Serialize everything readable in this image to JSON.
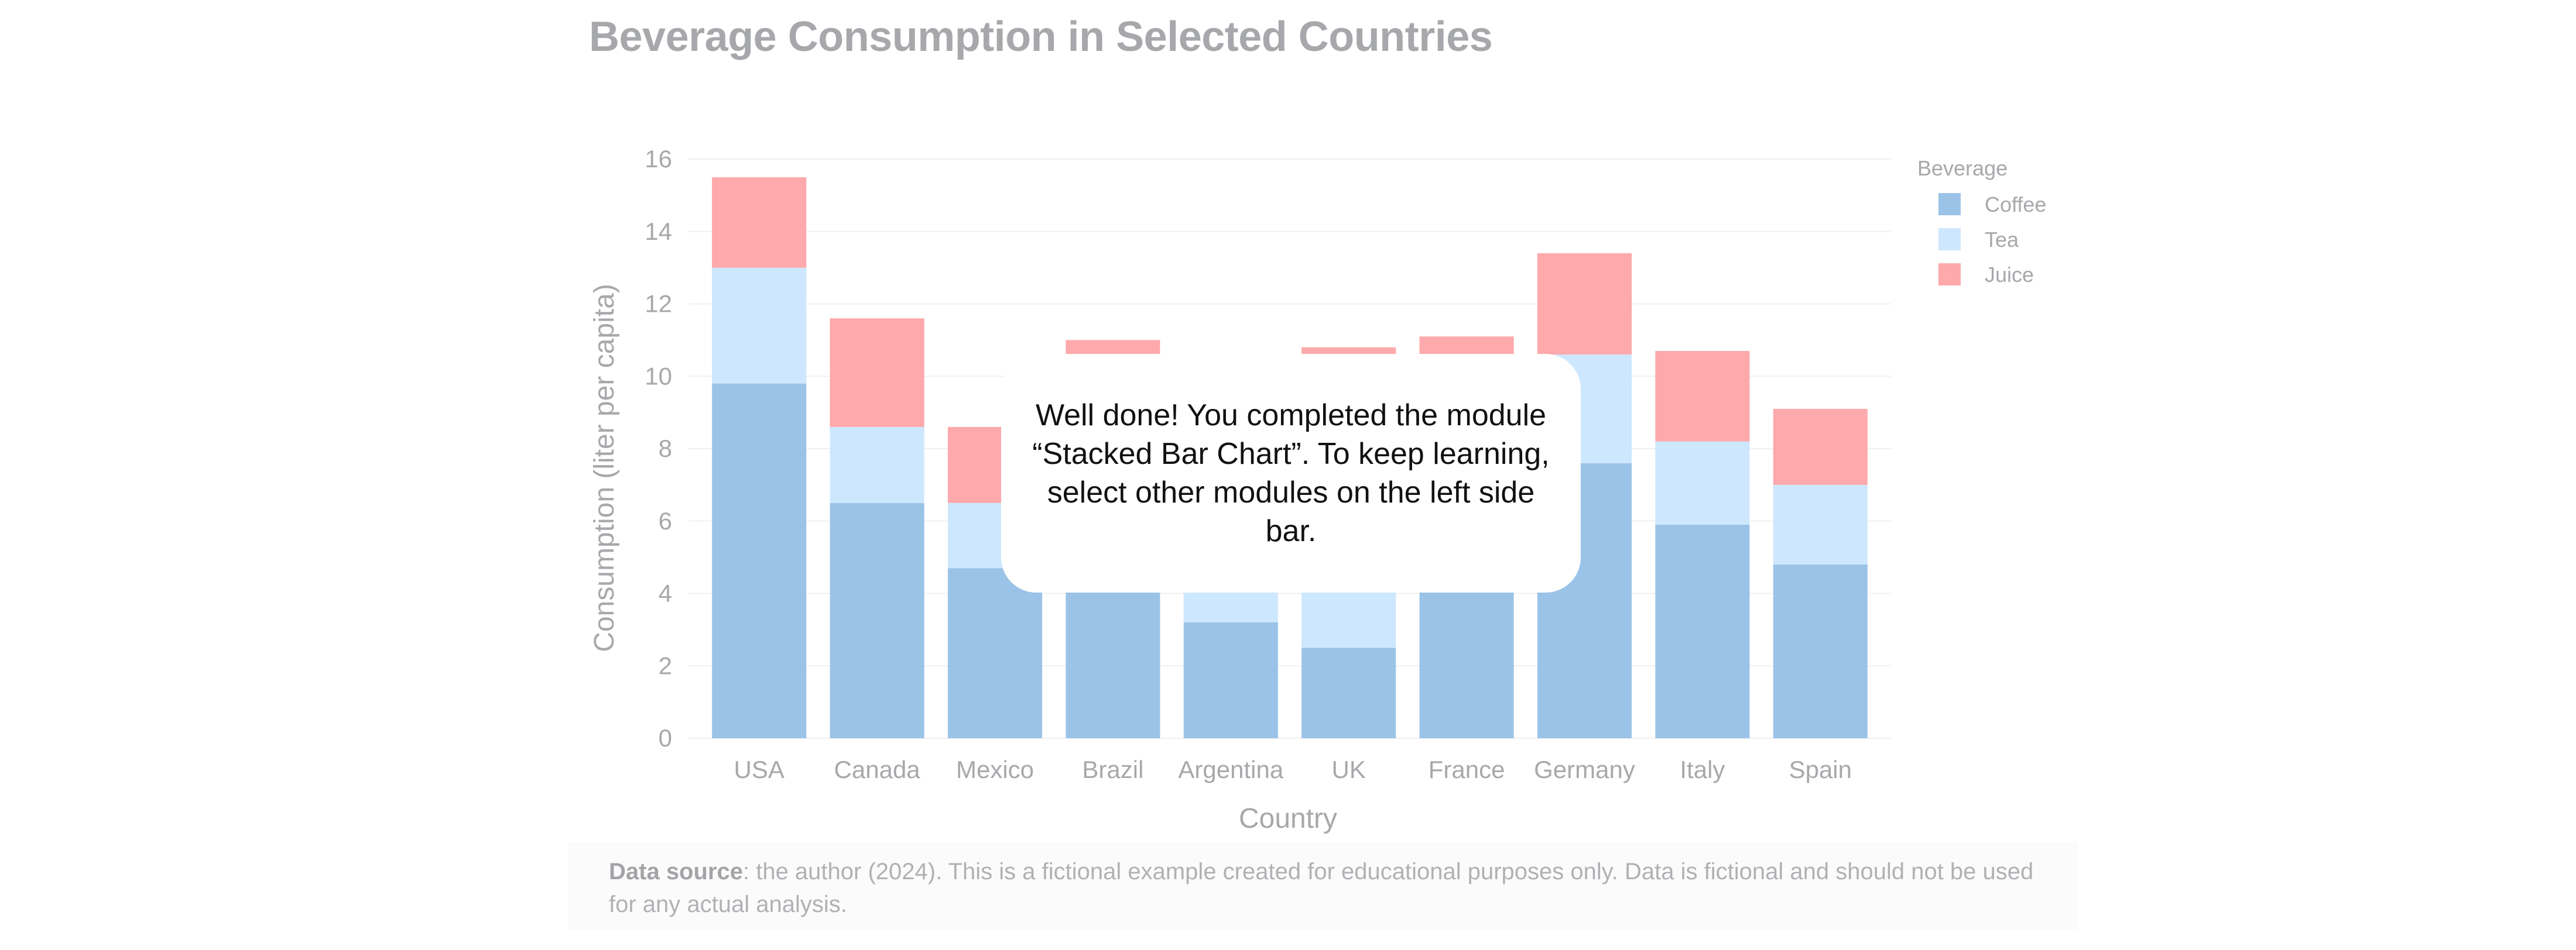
{
  "chart_data": {
    "type": "bar",
    "stacked": true,
    "title": "Beverage Consumption in Selected Countries",
    "xlabel": "Country",
    "ylabel": "Consumption (liter per capita)",
    "ylim": [
      0,
      16
    ],
    "yticks": [
      0,
      2,
      4,
      6,
      8,
      10,
      12,
      14,
      16
    ],
    "grid": true,
    "legend_title": "Beverage",
    "legend_position": "top-right",
    "categories": [
      "USA",
      "Canada",
      "Mexico",
      "Brazil",
      "Argentina",
      "UK",
      "France",
      "Germany",
      "Italy",
      "Spain"
    ],
    "series": [
      {
        "name": "Coffee",
        "color": "#9bc3e8",
        "values": [
          9.8,
          6.5,
          4.7,
          6.0,
          3.2,
          2.5,
          6.0,
          7.6,
          5.9,
          4.8
        ]
      },
      {
        "name": "Tea",
        "color": "#cde7fe",
        "values": [
          3.2,
          2.1,
          1.8,
          4.5,
          3.1,
          6.5,
          4.6,
          3.0,
          2.3,
          2.2
        ]
      },
      {
        "name": "Juice",
        "color": "#fea9ab",
        "values": [
          2.5,
          3.0,
          2.1,
          0.5,
          2.0,
          1.8,
          0.5,
          2.8,
          2.5,
          2.1
        ]
      }
    ]
  },
  "overlay": {
    "message": "Well done! You completed the module “Stacked Bar Chart”. To keep learning, select other modules on the left side bar."
  },
  "footer": {
    "source_label": "Data source",
    "source_text": ": the author (2024). This is a fictional example created for educational purposes only. Data is fictional and should not be used for any actual analysis."
  }
}
